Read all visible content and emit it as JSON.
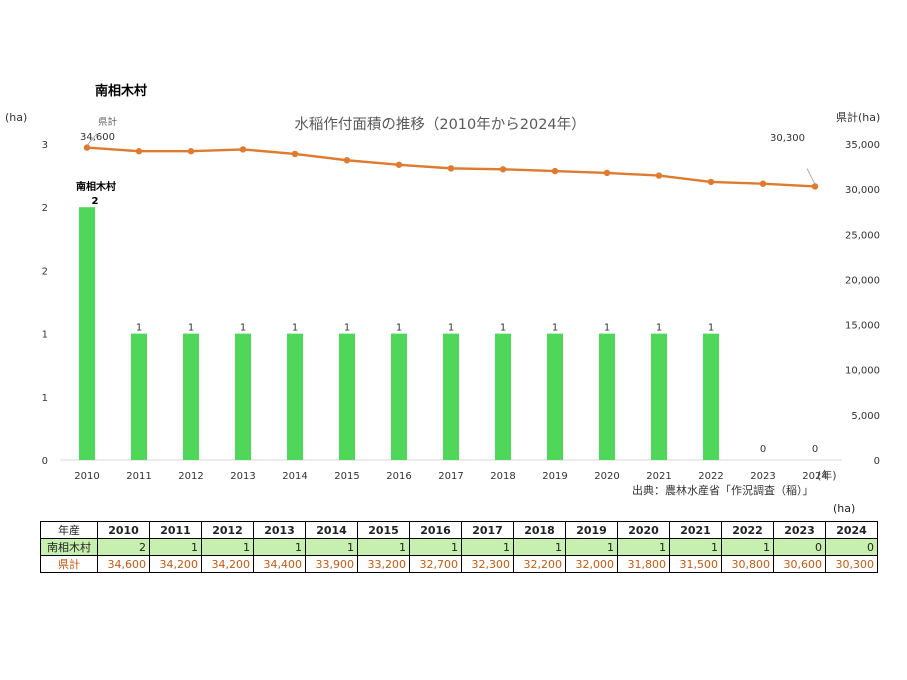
{
  "heading": "南相木村",
  "source": "出典：農林水産省「作況調査（稲）」",
  "table_unit": "(ha)",
  "table": {
    "header_label": "年産",
    "rows": [
      {
        "label": "南相木村",
        "values": [
          "2",
          "1",
          "1",
          "1",
          "1",
          "1",
          "1",
          "1",
          "1",
          "1",
          "1",
          "1",
          "1",
          "0",
          "0"
        ]
      },
      {
        "label": "県計",
        "values": [
          "34,600",
          "34,200",
          "34,200",
          "34,400",
          "33,900",
          "33,200",
          "32,700",
          "32,300",
          "32,200",
          "32,000",
          "31,800",
          "31,500",
          "30,800",
          "30,600",
          "30,300"
        ]
      }
    ]
  },
  "colors": {
    "bar": "#4fd75a",
    "line": "#e07a2e",
    "pref_text": "#c55a11",
    "town_row_bg": "#c6efb0"
  },
  "chart_data": {
    "type": "bar+line",
    "title": "水稲作付面積の推移（2010年から2024年）",
    "categories": [
      "2010",
      "2011",
      "2012",
      "2013",
      "2014",
      "2015",
      "2016",
      "2017",
      "2018",
      "2019",
      "2020",
      "2021",
      "2022",
      "2023",
      "2024"
    ],
    "x_unit": "(年)",
    "series": [
      {
        "name": "南相木村",
        "type": "bar",
        "axis": "left",
        "values": [
          2,
          1,
          1,
          1,
          1,
          1,
          1,
          1,
          1,
          1,
          1,
          1,
          1,
          0,
          0
        ],
        "labels": [
          "2",
          "1",
          "1",
          "1",
          "1",
          "1",
          "1",
          "1",
          "1",
          "1",
          "1",
          "1",
          "1",
          "0",
          "0"
        ]
      },
      {
        "name": "県計",
        "type": "line",
        "axis": "right",
        "values": [
          34600,
          34200,
          34200,
          34400,
          33900,
          33200,
          32700,
          32300,
          32200,
          32000,
          31800,
          31500,
          30800,
          30600,
          30300
        ],
        "first_label": "34,600",
        "last_label": "30,300"
      }
    ],
    "left_axis": {
      "label": "(ha)",
      "ylim": [
        0,
        2.5
      ],
      "tick_labels": [
        "0",
        "1",
        "1",
        "2",
        "2",
        "3"
      ]
    },
    "right_axis": {
      "label": "県計(ha)",
      "ylim": [
        0,
        35000
      ],
      "tick_labels": [
        "0",
        "5,000",
        "10,000",
        "15,000",
        "20,000",
        "25,000",
        "30,000",
        "35,000"
      ]
    }
  }
}
